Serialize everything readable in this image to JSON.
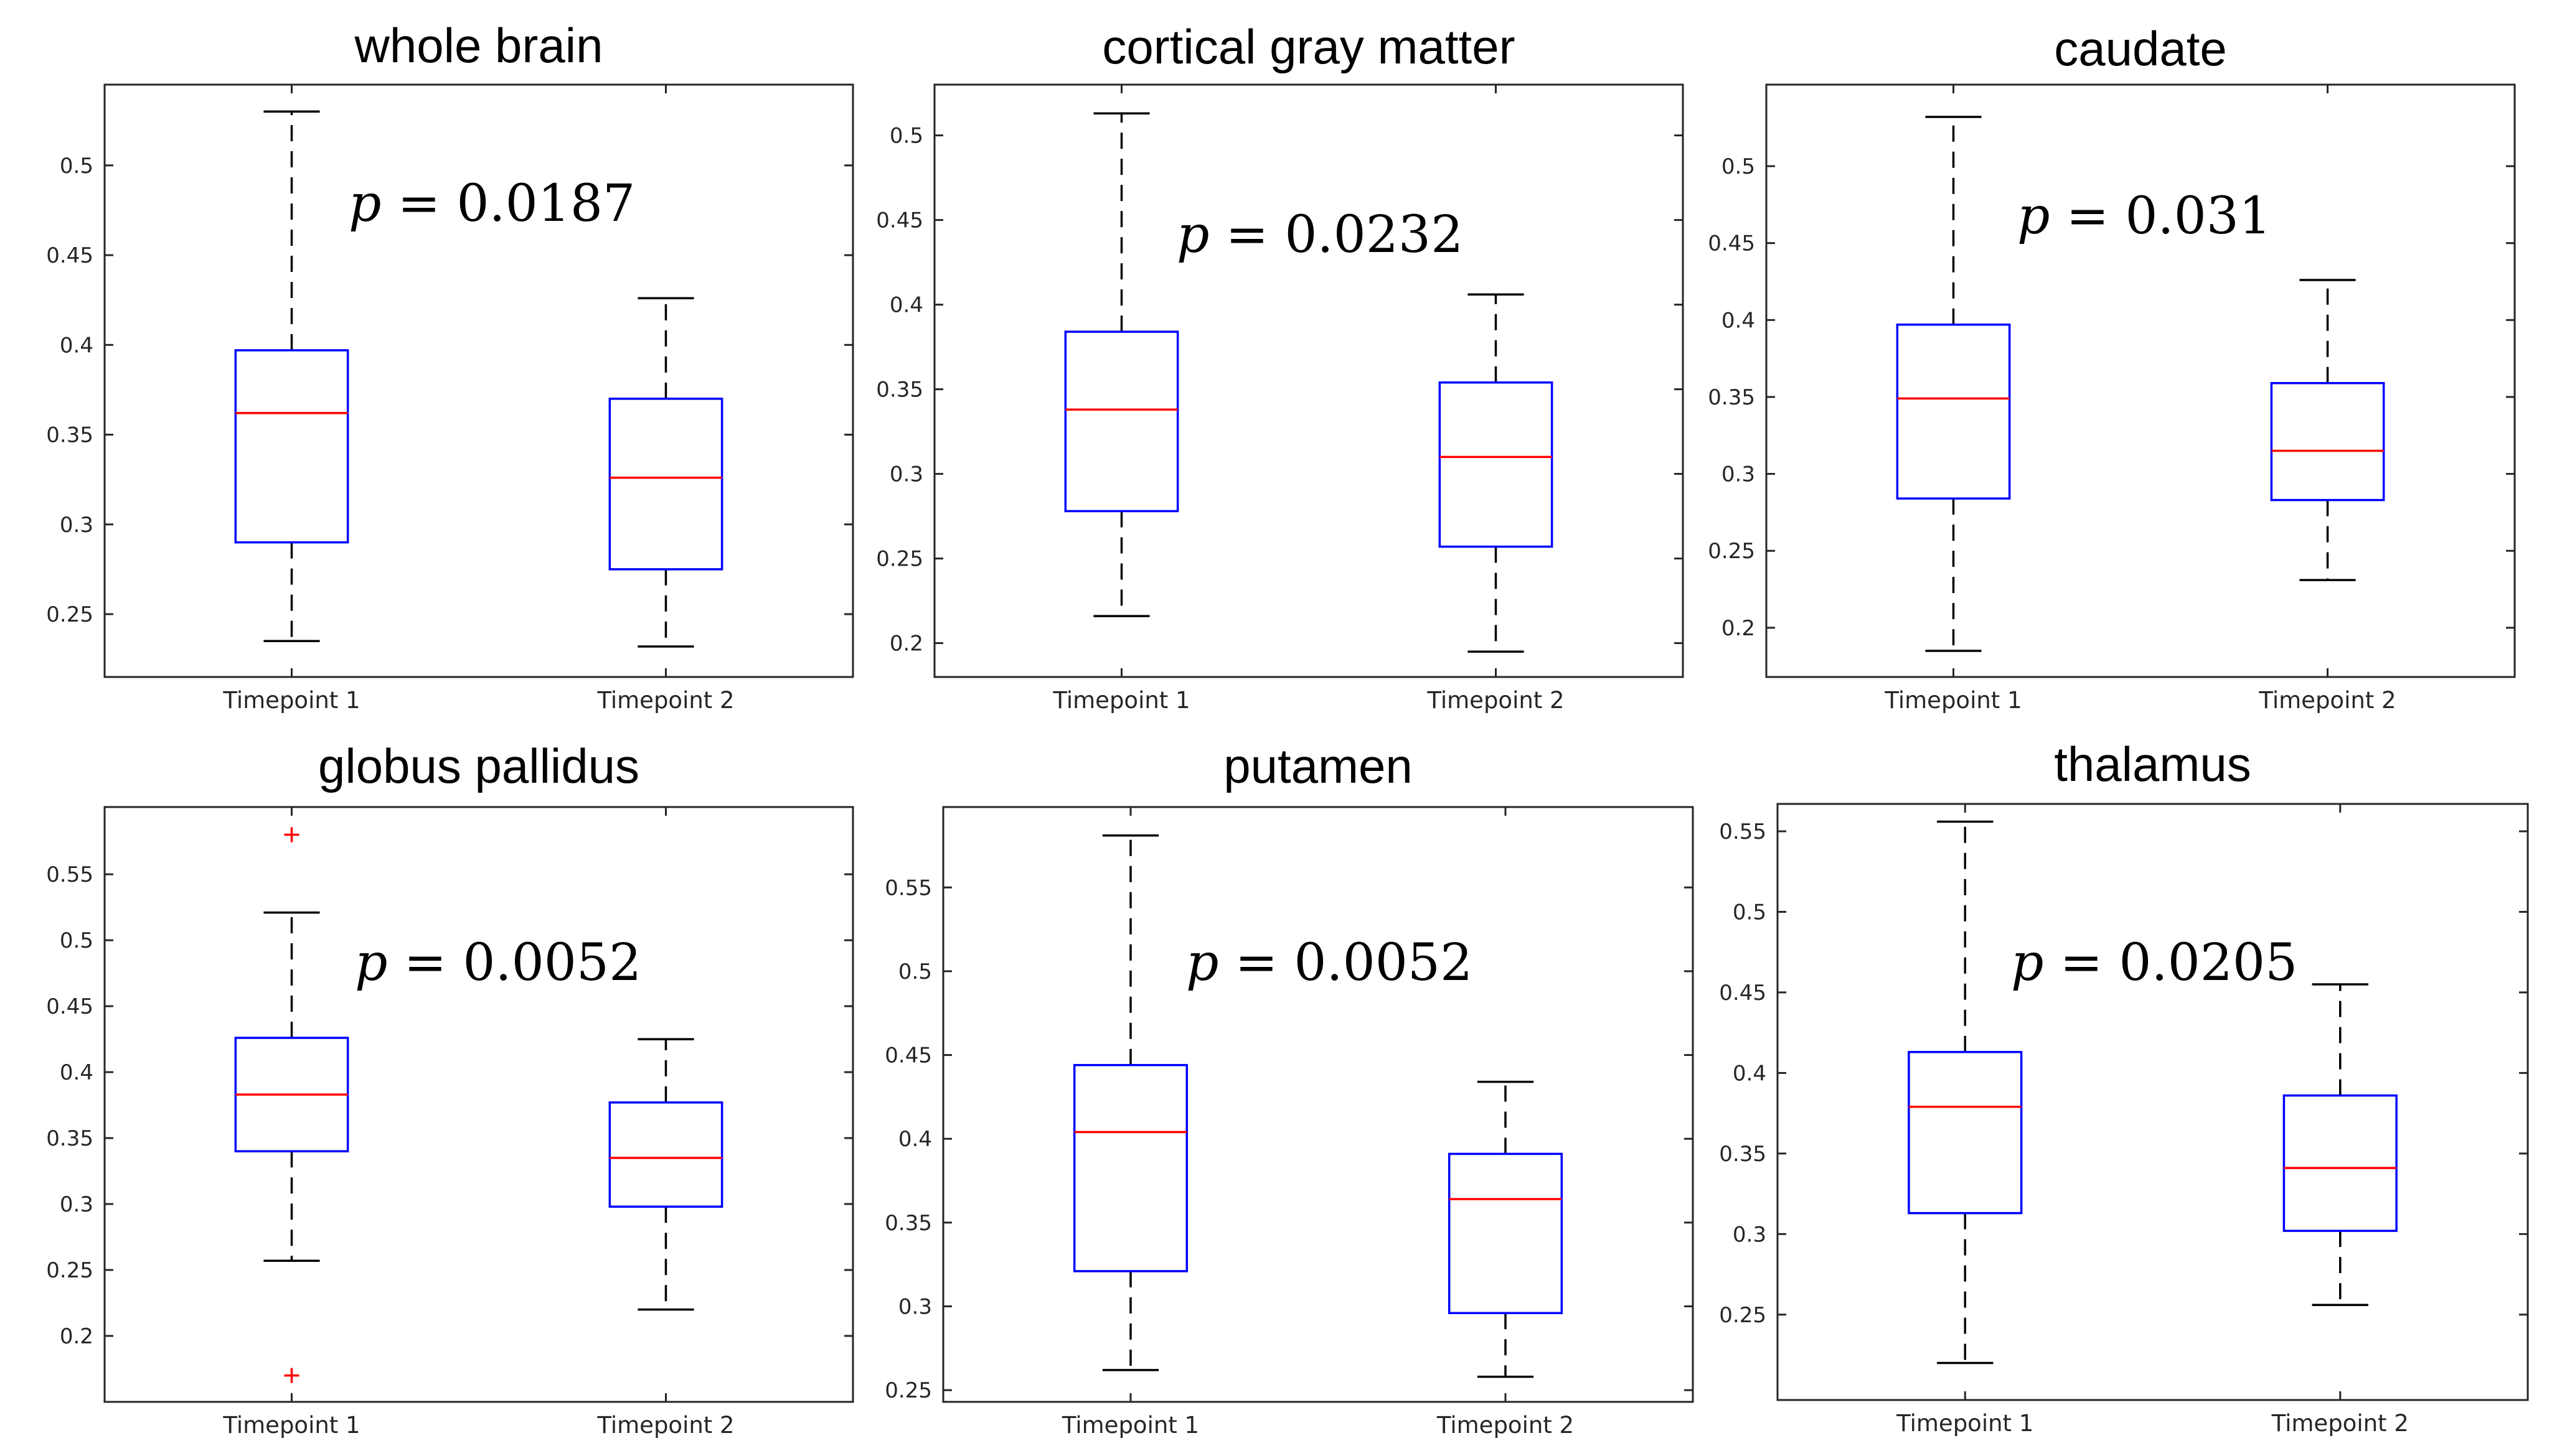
{
  "chart_data": [
    {
      "type": "box",
      "title": "whole brain",
      "annotation": "p = 0.0187",
      "categories": [
        "Timepoint 1",
        "Timepoint 2"
      ],
      "yticks": [
        "0.25",
        "0.3",
        "0.35",
        "0.4",
        "0.45",
        "0.5"
      ],
      "ylim": [
        0.215,
        0.545
      ],
      "boxes": [
        {
          "whisker_low": 0.235,
          "q1": 0.29,
          "median": 0.362,
          "q3": 0.397,
          "whisker_high": 0.53,
          "outliers": []
        },
        {
          "whisker_low": 0.232,
          "q1": 0.275,
          "median": 0.326,
          "q3": 0.37,
          "whisker_high": 0.426,
          "outliers": []
        }
      ]
    },
    {
      "type": "box",
      "title": "cortical gray matter",
      "annotation": "p = 0.0232",
      "categories": [
        "Timepoint 1",
        "Timepoint 2"
      ],
      "yticks": [
        "0.2",
        "0.25",
        "0.3",
        "0.35",
        "0.4",
        "0.45",
        "0.5"
      ],
      "ylim": [
        0.18,
        0.53
      ],
      "boxes": [
        {
          "whisker_low": 0.216,
          "q1": 0.278,
          "median": 0.338,
          "q3": 0.384,
          "whisker_high": 0.513,
          "outliers": []
        },
        {
          "whisker_low": 0.195,
          "q1": 0.257,
          "median": 0.31,
          "q3": 0.354,
          "whisker_high": 0.406,
          "outliers": []
        }
      ]
    },
    {
      "type": "box",
      "title": "caudate",
      "annotation": "p = 0.031",
      "categories": [
        "Timepoint 1",
        "Timepoint 2"
      ],
      "yticks": [
        "0.2",
        "0.25",
        "0.3",
        "0.35",
        "0.4",
        "0.45",
        "0.5"
      ],
      "ylim": [
        0.168,
        0.553
      ],
      "boxes": [
        {
          "whisker_low": 0.185,
          "q1": 0.284,
          "median": 0.349,
          "q3": 0.397,
          "whisker_high": 0.532,
          "outliers": []
        },
        {
          "whisker_low": 0.231,
          "q1": 0.283,
          "median": 0.315,
          "q3": 0.359,
          "whisker_high": 0.426,
          "outliers": []
        }
      ]
    },
    {
      "type": "box",
      "title": "globus pallidus",
      "annotation": "p = 0.0052",
      "categories": [
        "Timepoint 1",
        "Timepoint 2"
      ],
      "yticks": [
        "0.2",
        "0.25",
        "0.3",
        "0.35",
        "0.4",
        "0.45",
        "0.5",
        "0.55"
      ],
      "ylim": [
        0.15,
        0.601
      ],
      "boxes": [
        {
          "whisker_low": 0.257,
          "q1": 0.34,
          "median": 0.383,
          "q3": 0.426,
          "whisker_high": 0.521,
          "outliers": [
            0.58,
            0.17
          ]
        },
        {
          "whisker_low": 0.22,
          "q1": 0.298,
          "median": 0.335,
          "q3": 0.377,
          "whisker_high": 0.425,
          "outliers": []
        }
      ]
    },
    {
      "type": "box",
      "title": "putamen",
      "annotation": "p = 0.0052",
      "categories": [
        "Timepoint 1",
        "Timepoint 2"
      ],
      "yticks": [
        "0.25",
        "0.3",
        "0.35",
        "0.4",
        "0.45",
        "0.5",
        "0.55"
      ],
      "ylim": [
        0.243,
        0.598
      ],
      "boxes": [
        {
          "whisker_low": 0.262,
          "q1": 0.321,
          "median": 0.404,
          "q3": 0.444,
          "whisker_high": 0.581,
          "outliers": []
        },
        {
          "whisker_low": 0.258,
          "q1": 0.296,
          "median": 0.364,
          "q3": 0.391,
          "whisker_high": 0.434,
          "outliers": []
        }
      ]
    },
    {
      "type": "box",
      "title": "thalamus",
      "annotation": "p = 0.0205",
      "categories": [
        "Timepoint 1",
        "Timepoint 2"
      ],
      "yticks": [
        "0.25",
        "0.3",
        "0.35",
        "0.4",
        "0.45",
        "0.5",
        "0.55"
      ],
      "ylim": [
        0.197,
        0.567
      ],
      "boxes": [
        {
          "whisker_low": 0.22,
          "q1": 0.313,
          "median": 0.379,
          "q3": 0.413,
          "whisker_high": 0.556,
          "outliers": []
        },
        {
          "whisker_low": 0.256,
          "q1": 0.302,
          "median": 0.341,
          "q3": 0.386,
          "whisker_high": 0.455,
          "outliers": []
        }
      ]
    }
  ],
  "colors": {
    "box": "#0000ff",
    "median": "#ff0000",
    "whisker": "#000000",
    "outlier": "#ff0000",
    "axes": "#262626"
  }
}
